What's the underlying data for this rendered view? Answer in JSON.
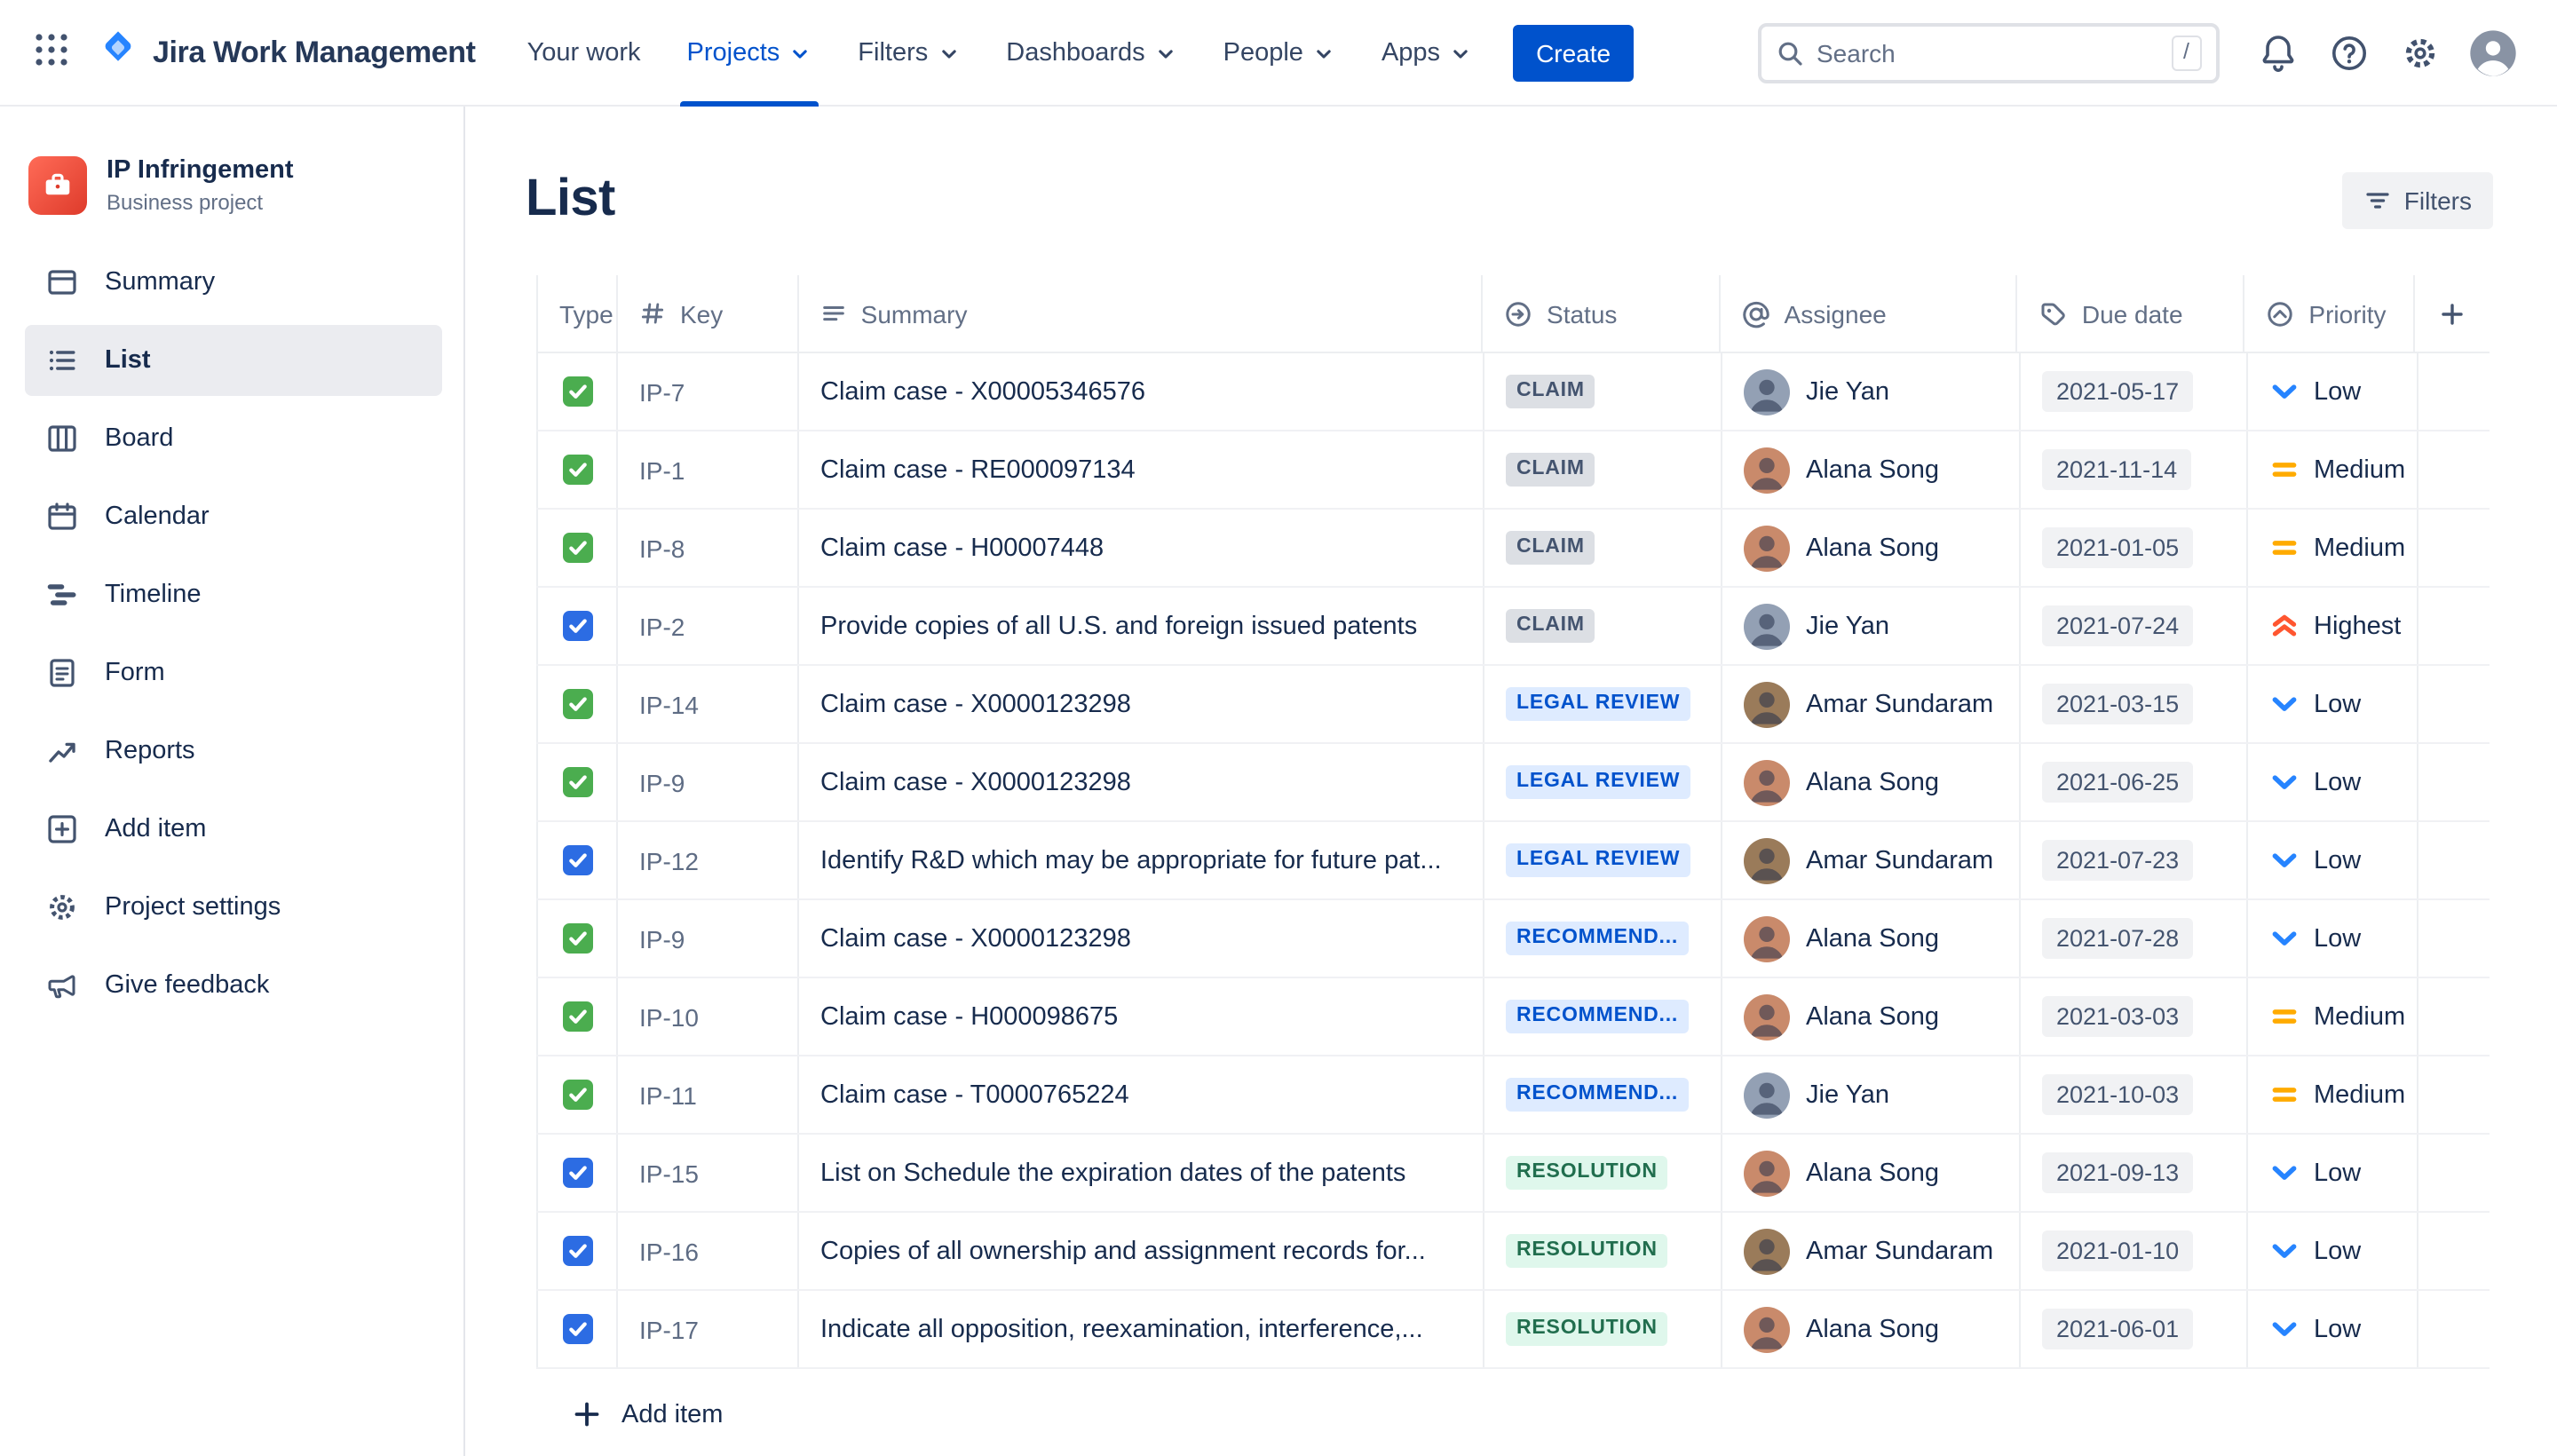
{
  "topnav": {
    "brand": "Jira Work Management",
    "nav_items": [
      {
        "label": "Your work",
        "dropdown": false,
        "active": false
      },
      {
        "label": "Projects",
        "dropdown": true,
        "active": true
      },
      {
        "label": "Filters",
        "dropdown": true,
        "active": false
      },
      {
        "label": "Dashboards",
        "dropdown": true,
        "active": false
      },
      {
        "label": "People",
        "dropdown": true,
        "active": false
      },
      {
        "label": "Apps",
        "dropdown": true,
        "active": false
      }
    ],
    "create_label": "Create",
    "search": {
      "placeholder": "Search",
      "shortcut": "/"
    }
  },
  "sidebar": {
    "project": {
      "name": "IP Infringement",
      "type": "Business project"
    },
    "items": [
      {
        "label": "Summary",
        "icon": "summary",
        "active": false
      },
      {
        "label": "List",
        "icon": "list",
        "active": true
      },
      {
        "label": "Board",
        "icon": "board",
        "active": false
      },
      {
        "label": "Calendar",
        "icon": "calendar",
        "active": false
      },
      {
        "label": "Timeline",
        "icon": "timeline",
        "active": false
      },
      {
        "label": "Form",
        "icon": "form",
        "active": false
      },
      {
        "label": "Reports",
        "icon": "reports",
        "active": false
      },
      {
        "label": "Add item",
        "icon": "add",
        "active": false
      },
      {
        "label": "Project settings",
        "icon": "settings",
        "active": false
      },
      {
        "label": "Give feedback",
        "icon": "feedback",
        "active": false
      }
    ]
  },
  "main": {
    "title": "List",
    "filters_button": "Filters",
    "add_item": "Add item",
    "table": {
      "columns": [
        {
          "label": "Type",
          "icon": null
        },
        {
          "label": "Key",
          "icon": "hash"
        },
        {
          "label": "Summary",
          "icon": "lines"
        },
        {
          "label": "Status",
          "icon": "status"
        },
        {
          "label": "Assignee",
          "icon": "at"
        },
        {
          "label": "Due date",
          "icon": "tag"
        },
        {
          "label": "Priority",
          "icon": "priority"
        }
      ],
      "rows": [
        {
          "type": "task",
          "key": "IP-7",
          "summary": "Claim case - X00005346576",
          "status": "CLAIM",
          "status_style": "gray",
          "assignee": "Jie Yan",
          "due": "2021-05-17",
          "priority": "Low"
        },
        {
          "type": "task",
          "key": "IP-1",
          "summary": "Claim case - RE000097134",
          "status": "CLAIM",
          "status_style": "gray",
          "assignee": "Alana Song",
          "due": "2021-11-14",
          "priority": "Medium"
        },
        {
          "type": "task",
          "key": "IP-8",
          "summary": "Claim case - H00007448",
          "status": "CLAIM",
          "status_style": "gray",
          "assignee": "Alana Song",
          "due": "2021-01-05",
          "priority": "Medium"
        },
        {
          "type": "subtask",
          "key": "IP-2",
          "summary": "Provide copies of all U.S. and foreign issued patents",
          "status": "CLAIM",
          "status_style": "gray",
          "assignee": "Jie Yan",
          "due": "2021-07-24",
          "priority": "Highest"
        },
        {
          "type": "task",
          "key": "IP-14",
          "summary": "Claim case - X0000123298",
          "status": "LEGAL REVIEW",
          "status_style": "blue",
          "assignee": "Amar Sundaram",
          "due": "2021-03-15",
          "priority": "Low"
        },
        {
          "type": "task",
          "key": "IP-9",
          "summary": "Claim case - X0000123298",
          "status": "LEGAL REVIEW",
          "status_style": "blue",
          "assignee": "Alana Song",
          "due": "2021-06-25",
          "priority": "Low"
        },
        {
          "type": "subtask",
          "key": "IP-12",
          "summary": "Identify R&D which may be appropriate for future pat...",
          "status": "LEGAL REVIEW",
          "status_style": "blue",
          "assignee": "Amar Sundaram",
          "due": "2021-07-23",
          "priority": "Low"
        },
        {
          "type": "task",
          "key": "IP-9",
          "summary": "Claim case - X0000123298",
          "status": "RECOMMEND...",
          "status_style": "blue",
          "assignee": "Alana Song",
          "due": "2021-07-28",
          "priority": "Low"
        },
        {
          "type": "task",
          "key": "IP-10",
          "summary": "Claim case - H000098675",
          "status": "RECOMMEND...",
          "status_style": "blue",
          "assignee": "Alana Song",
          "due": "2021-03-03",
          "priority": "Medium"
        },
        {
          "type": "task",
          "key": "IP-11",
          "summary": "Claim case - T0000765224",
          "status": "RECOMMEND...",
          "status_style": "blue",
          "assignee": "Jie Yan",
          "due": "2021-10-03",
          "priority": "Medium"
        },
        {
          "type": "subtask",
          "key": "IP-15",
          "summary": "List on Schedule the expiration dates of the patents",
          "status": "RESOLUTION",
          "status_style": "green",
          "assignee": "Alana Song",
          "due": "2021-09-13",
          "priority": "Low"
        },
        {
          "type": "subtask",
          "key": "IP-16",
          "summary": "Copies of all ownership and assignment records for...",
          "status": "RESOLUTION",
          "status_style": "green",
          "assignee": "Amar Sundaram",
          "due": "2021-01-10",
          "priority": "Low"
        },
        {
          "type": "subtask",
          "key": "IP-17",
          "summary": "Indicate all opposition, reexamination, interference,...",
          "status": "RESOLUTION",
          "status_style": "green",
          "assignee": "Alana Song",
          "due": "2021-06-01",
          "priority": "Low"
        }
      ]
    }
  },
  "people": {
    "Jie Yan": {
      "avatar_color": "#93A0B4"
    },
    "Alana Song": {
      "avatar_color": "#C98A6B"
    },
    "Amar Sundaram": {
      "avatar_color": "#9A7B5A"
    }
  },
  "colors": {
    "brand_blue": "#0052CC",
    "status_gray_bg": "#DCDFE4",
    "status_gray_text": "#44546F",
    "status_blue_bg": "#DEEBFF",
    "status_blue_text": "#0052CC",
    "status_green_bg": "#DFF7EC",
    "status_green_text": "#216E4E",
    "priority_low": "#2684FF",
    "priority_medium": "#FFAB00",
    "priority_highest": "#FF5630",
    "type_task_green": "#4BAD4F",
    "type_subtask_blue": "#2C6CE3",
    "due_chip_bg": "#F1F2F4",
    "sidebar_selected_bg": "#EBECF0"
  }
}
